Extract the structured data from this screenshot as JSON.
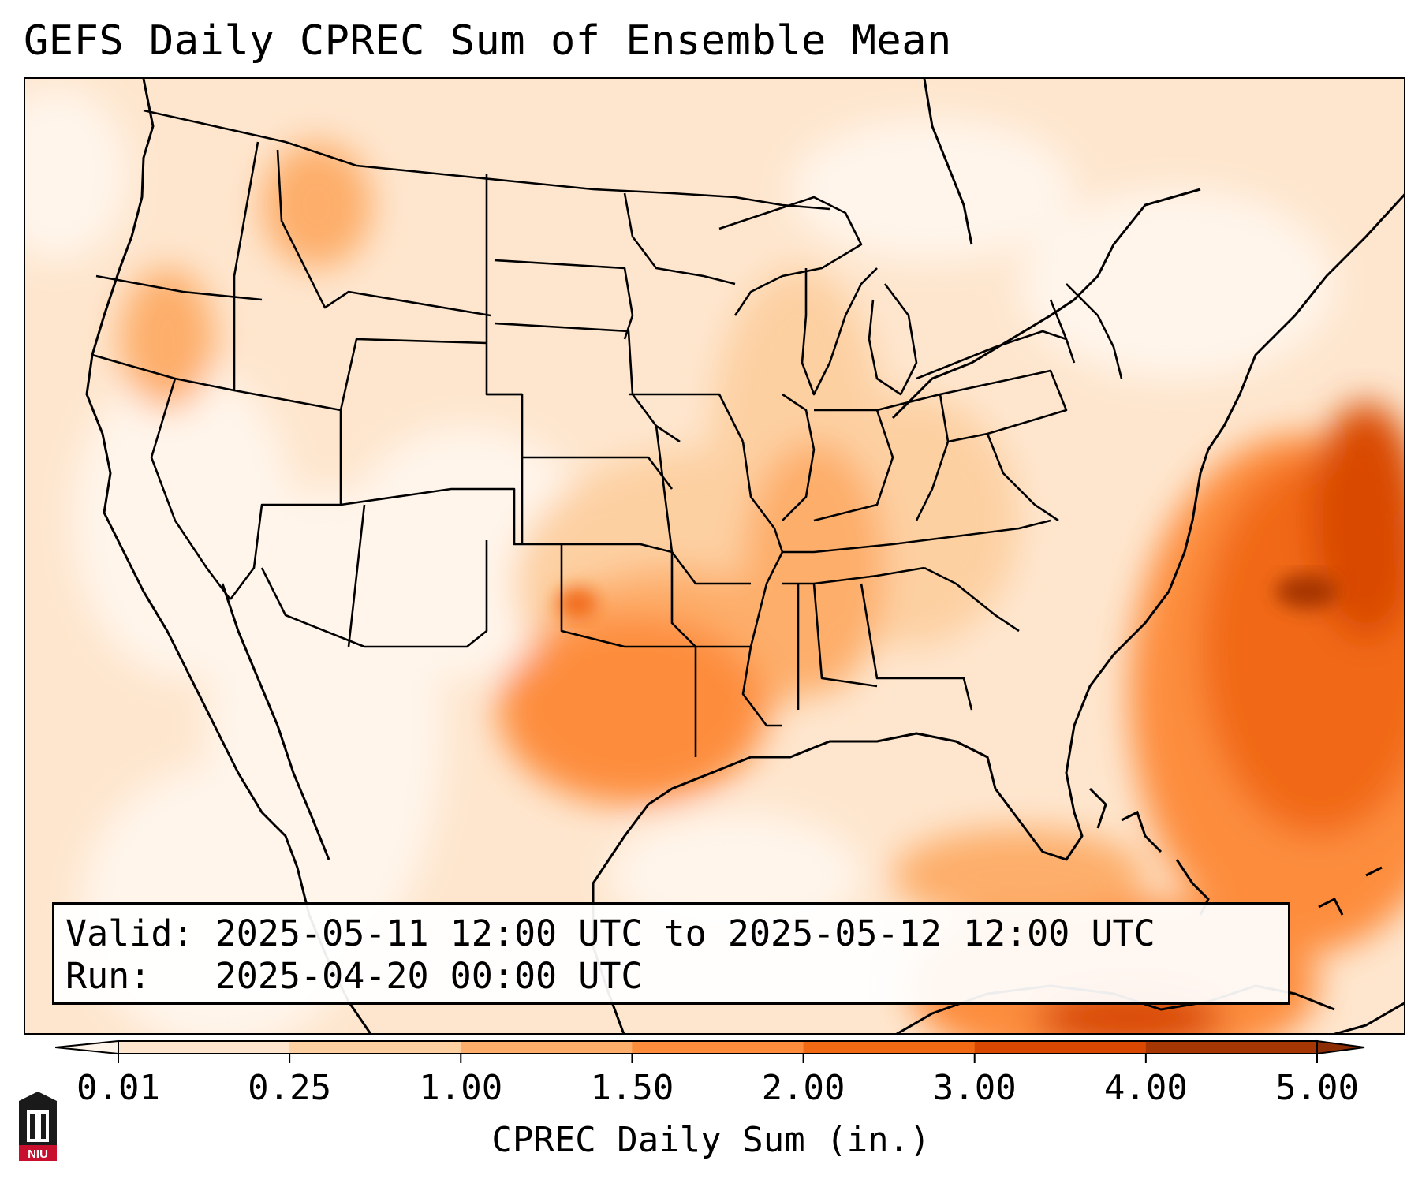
{
  "title": "GEFS Daily CPREC Sum of Ensemble Mean",
  "info": {
    "valid_label": "Valid:",
    "valid_value": "2025-05-11 12:00 UTC to 2025-05-12 12:00 UTC",
    "run_label": "Run:",
    "run_value": "2025-04-20 00:00 UTC"
  },
  "colorbar": {
    "label": "CPREC Daily Sum (in.)",
    "ticks": [
      "0.01",
      "0.25",
      "1.00",
      "1.50",
      "2.00",
      "3.00",
      "4.00",
      "5.00"
    ],
    "colors": [
      "#fff5eb",
      "#fee6ce",
      "#fdd0a2",
      "#fdae6b",
      "#fd8d3c",
      "#f16913",
      "#d94801",
      "#a63603"
    ],
    "under_color": "#fff5eb",
    "over_color": "#8c2d04"
  },
  "logo": {
    "text": "NIU",
    "colors": {
      "dark": "#1a1a1a",
      "red": "#c8102e"
    }
  }
}
